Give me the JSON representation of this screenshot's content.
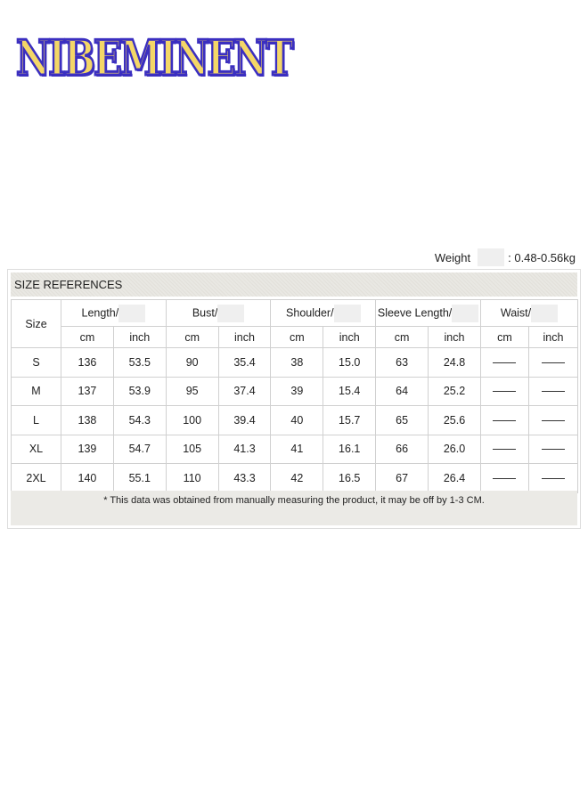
{
  "brand": {
    "logo_text": "NIBEMINENT",
    "fill_color": "#f4d767",
    "outline_color": "#3b2fc0"
  },
  "weight": {
    "label": "Weight",
    "value": ": 0.48-0.56kg"
  },
  "section_title": "SIZE REFERENCES",
  "table": {
    "size_header": "Size",
    "groups": [
      "Length/",
      "Bust/",
      "Shoulder/",
      "Sleeve Length/",
      "Waist/"
    ],
    "units": [
      "cm",
      "inch"
    ],
    "rows": [
      [
        "S",
        "136",
        "53.5",
        "90",
        "35.4",
        "38",
        "15.0",
        "63",
        "24.8",
        "——",
        "——"
      ],
      [
        "M",
        "137",
        "53.9",
        "95",
        "37.4",
        "39",
        "15.4",
        "64",
        "25.2",
        "——",
        "——"
      ],
      [
        "L",
        "138",
        "54.3",
        "100",
        "39.4",
        "40",
        "15.7",
        "65",
        "25.6",
        "——",
        "——"
      ],
      [
        "XL",
        "139",
        "54.7",
        "105",
        "41.3",
        "41",
        "16.1",
        "66",
        "26.0",
        "——",
        "——"
      ],
      [
        "2XL",
        "140",
        "55.1",
        "110",
        "43.3",
        "42",
        "16.5",
        "67",
        "26.4",
        "——",
        "——"
      ]
    ]
  },
  "footnote": "* This data was obtained from manually measuring the product, it may be off by 1-3 CM."
}
